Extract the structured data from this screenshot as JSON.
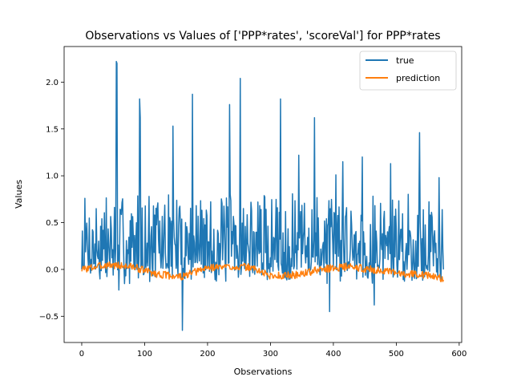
{
  "chart_data": {
    "type": "line",
    "title": "Observations vs Values of ['PPP*rates', 'scoreVal'] for PPP*rates",
    "xlabel": "Observations",
    "ylabel": "Values",
    "xlim": [
      -28,
      604
    ],
    "ylim": [
      -0.78,
      2.38
    ],
    "xticks": [
      0,
      100,
      200,
      300,
      400,
      500,
      600
    ],
    "xtick_labels": [
      "0",
      "100",
      "200",
      "300",
      "400",
      "500",
      "600"
    ],
    "yticks": [
      -0.5,
      0.0,
      0.5,
      1.0,
      1.5,
      2.0
    ],
    "ytick_labels": [
      "−0.5",
      "0.0",
      "0.5",
      "1.0",
      "1.5",
      "2.0"
    ],
    "grid": false,
    "legend": "top-right",
    "n_points": 576,
    "series": [
      {
        "name": "true",
        "color": "#1f77b4",
        "seed": 7,
        "base": 0.12,
        "noise": 0.32,
        "spikes": [
          [
            55,
            2.22
          ],
          [
            56,
            2.2
          ],
          [
            92,
            1.82
          ],
          [
            93,
            1.62
          ],
          [
            145,
            1.53
          ],
          [
            160,
            -0.65
          ],
          [
            176,
            1.87
          ],
          [
            235,
            1.76
          ],
          [
            252,
            2.04
          ],
          [
            316,
            1.82
          ],
          [
            345,
            1.22
          ],
          [
            370,
            1.62
          ],
          [
            394,
            -0.45
          ],
          [
            404,
            1.01
          ],
          [
            415,
            1.15
          ],
          [
            446,
            1.2
          ],
          [
            465,
            -0.38
          ],
          [
            491,
            1.13
          ],
          [
            537,
            1.46
          ],
          [
            568,
            0.98
          ],
          [
            59,
            -0.22
          ],
          [
            76,
            -0.15
          ]
        ],
        "end_values": [
          [
            0,
            0.0
          ],
          [
            575,
            0.0
          ]
        ]
      },
      {
        "name": "prediction",
        "color": "#ff7f0e",
        "seed": 3,
        "trend": [
          [
            0,
            0.0
          ],
          [
            40,
            0.05
          ],
          [
            80,
            0.03
          ],
          [
            120,
            -0.05
          ],
          [
            160,
            -0.08
          ],
          [
            200,
            0.02
          ],
          [
            240,
            0.03
          ],
          [
            270,
            0.02
          ],
          [
            300,
            -0.07
          ],
          [
            340,
            -0.06
          ],
          [
            380,
            0.0
          ],
          [
            420,
            0.03
          ],
          [
            460,
            0.0
          ],
          [
            500,
            -0.04
          ],
          [
            540,
            -0.05
          ],
          [
            575,
            -0.1
          ]
        ],
        "noise": 0.04
      }
    ]
  }
}
